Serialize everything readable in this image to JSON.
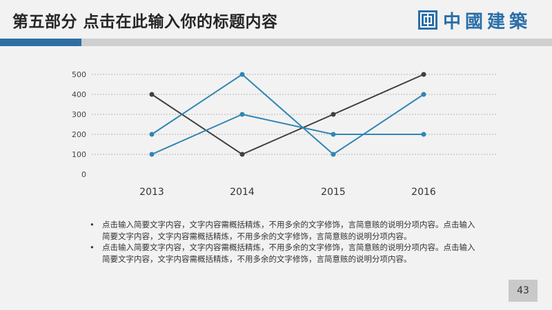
{
  "header": {
    "title": "第五部分   点击在此输入你的标题内容",
    "logo_text": "中國建築"
  },
  "chart_data": {
    "type": "line",
    "categories": [
      "2013",
      "2014",
      "2015",
      "2016"
    ],
    "series": [
      {
        "values": [
          400,
          100,
          300,
          500
        ],
        "color": "#404040"
      },
      {
        "values": [
          200,
          500,
          100,
          400
        ],
        "color": "#2e86b3"
      },
      {
        "values": [
          100,
          300,
          200,
          200
        ],
        "color": "#2e86b3"
      }
    ],
    "ylim": [
      0,
      500
    ],
    "yticks": [
      "0",
      "100",
      "200",
      "300",
      "400",
      "500"
    ],
    "grid": true,
    "gridline_style": "dashed",
    "title": "",
    "xlabel": "",
    "ylabel": ""
  },
  "bullets": [
    "点击输入简要文字内容，文字内容需概括精炼，不用多余的文字修饰，言简意赅的说明分项内容。点击输入简要文字内容，文字内容需概括精炼，不用多余的文字修饰，言简意赅的说明分项内容。",
    "点击输入简要文字内容，文字内容需概括精炼，不用多余的文字修饰，言简意赅的说明分项内容。点击输入简要文字内容，文字内容需概括精炼，不用多余的文字修饰，言简意赅的说明分项内容。"
  ],
  "bullet_symbol": "•",
  "page_number": "43"
}
